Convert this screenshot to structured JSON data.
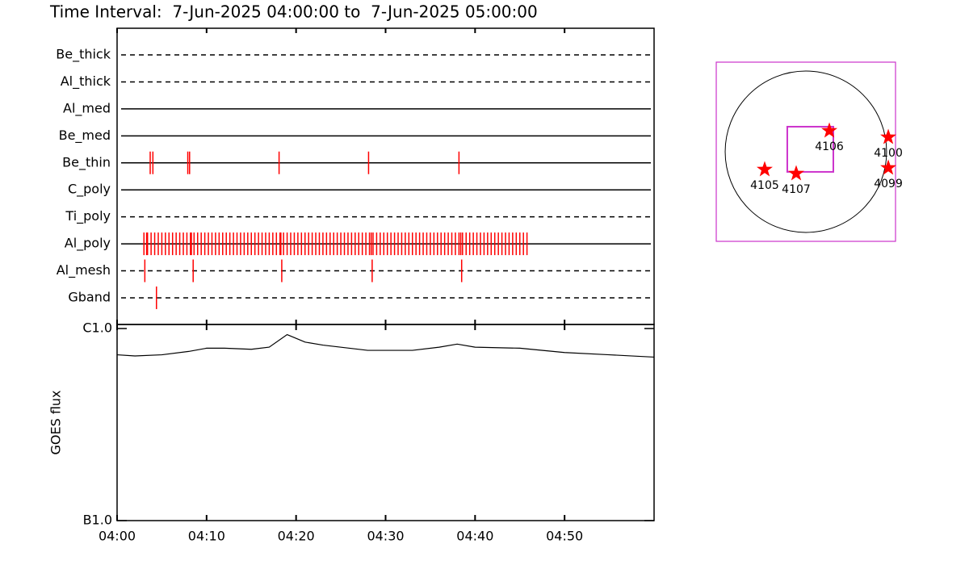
{
  "title": "Time Interval:  7-Jun-2025 04:00:00 to  7-Jun-2025 05:00:00",
  "chart_data": [
    {
      "type": "event",
      "categories": [
        "Be_thick",
        "Al_thick",
        "Al_med",
        "Be_med",
        "Be_thin",
        "C_poly",
        "Ti_poly",
        "Al_poly",
        "Al_mesh",
        "Gband"
      ],
      "line_styles": [
        "dashed",
        "dashed",
        "solid",
        "solid",
        "solid",
        "solid",
        "dashed",
        "solid",
        "dashed",
        "dashed"
      ],
      "color": "#ff0000",
      "xlim": [
        0,
        60
      ],
      "events": [
        [],
        [],
        [],
        [],
        [
          3.7,
          4.0,
          7.9,
          8.1,
          18.1,
          28.1,
          38.2
        ],
        [],
        [],
        [
          3.0,
          3.3,
          3.4,
          3.8,
          4.2,
          4.6,
          5.0,
          5.4,
          5.8,
          6.2,
          6.6,
          7.0,
          7.4,
          7.8,
          8.2,
          8.3,
          8.6,
          9.0,
          9.4,
          9.8,
          10.2,
          10.6,
          11.0,
          11.4,
          11.8,
          12.2,
          12.6,
          13.0,
          13.4,
          13.8,
          14.2,
          14.6,
          15.0,
          15.4,
          15.8,
          16.2,
          16.6,
          17.0,
          17.4,
          17.8,
          18.2,
          18.3,
          18.6,
          19.0,
          19.4,
          19.8,
          20.2,
          20.6,
          21.0,
          21.4,
          21.8,
          22.2,
          22.6,
          23.0,
          23.4,
          23.8,
          24.2,
          24.6,
          25.0,
          25.4,
          25.8,
          26.2,
          26.6,
          27.0,
          27.4,
          27.8,
          28.2,
          28.4,
          28.6,
          29.0,
          29.4,
          29.8,
          30.2,
          30.6,
          31.0,
          31.4,
          31.8,
          32.2,
          32.6,
          33.0,
          33.4,
          33.8,
          34.2,
          34.6,
          35.0,
          35.4,
          35.8,
          36.2,
          36.6,
          37.0,
          37.4,
          37.8,
          38.2,
          38.4,
          38.6,
          39.0,
          39.4,
          39.8,
          40.2,
          40.6,
          41.0,
          41.4,
          41.8,
          42.2,
          42.6,
          43.0,
          43.4,
          43.8,
          44.2,
          44.6,
          45.0,
          45.4,
          45.8
        ],
        [
          3.1,
          8.5,
          18.4,
          28.5,
          38.5
        ],
        [
          4.4
        ]
      ]
    },
    {
      "type": "line",
      "y_label": "GOES flux",
      "log_y": true,
      "color": "#000000",
      "x": [
        0,
        2,
        5,
        8,
        10,
        12,
        15,
        17,
        19,
        21,
        23,
        28,
        33,
        36,
        38,
        40,
        45,
        50,
        55,
        60
      ],
      "values": [
        7.3e-07,
        7.2e-07,
        7.3e-07,
        7.6e-07,
        7.9e-07,
        7.9e-07,
        7.8e-07,
        8e-07,
        9.3e-07,
        8.5e-07,
        8.2e-07,
        7.7e-07,
        7.7e-07,
        8e-07,
        8.3e-07,
        8e-07,
        7.9e-07,
        7.5e-07,
        7.3e-07,
        7.1e-07
      ],
      "xlim": [
        0,
        60
      ],
      "xticks": [
        {
          "value": 0,
          "label": "04:00"
        },
        {
          "value": 10,
          "label": "04:10"
        },
        {
          "value": 20,
          "label": "04:20"
        },
        {
          "value": 30,
          "label": "04:30"
        },
        {
          "value": 40,
          "label": "04:40"
        },
        {
          "value": 50,
          "label": "04:50"
        }
      ],
      "ylim": [
        1e-07,
        1.05e-06
      ],
      "yticks": [
        {
          "value": 1e-07,
          "label": "B1.0"
        },
        {
          "value": 1e-06,
          "label": "C1.0"
        }
      ]
    },
    {
      "type": "map",
      "xlim": [
        -1055,
        1055
      ],
      "ylim": [
        -1055,
        1055
      ],
      "solar_radius": 950,
      "fov": {
        "x": 52,
        "y": 29,
        "width": 542,
        "height": 532
      },
      "regions": [
        {
          "label": "4106",
          "x": 276,
          "y": 247
        },
        {
          "label": "4100",
          "x": 970,
          "y": 171
        },
        {
          "label": "4099",
          "x": 970,
          "y": -190
        },
        {
          "label": "4105",
          "x": -485,
          "y": -209
        },
        {
          "label": "4107",
          "x": -114,
          "y": -257
        }
      ]
    }
  ]
}
